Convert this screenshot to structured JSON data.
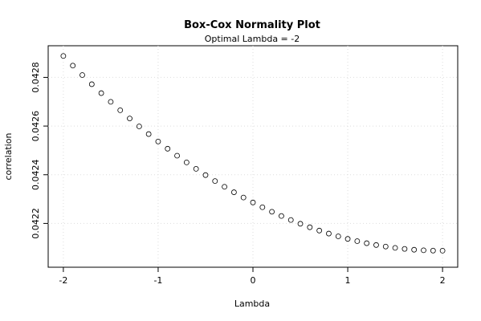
{
  "chart_data": {
    "type": "scatter",
    "title": "Box-Cox Normality Plot",
    "subtitle": "Optimal Lambda = -2",
    "x_label": "Lambda",
    "y_label": "correlation",
    "x": [
      -2,
      -1.9,
      -1.8,
      -1.7,
      -1.6,
      -1.5,
      -1.4,
      -1.3,
      -1.2,
      -1.1,
      -1,
      -0.9,
      -0.8,
      -0.7,
      -0.6,
      -0.5,
      -0.4,
      -0.3,
      -0.2,
      -0.1,
      0,
      0.1,
      0.2,
      0.3,
      0.4,
      0.5,
      0.6,
      0.7,
      0.8,
      0.9,
      1,
      1.1,
      1.2,
      1.3,
      1.4,
      1.5,
      1.6,
      1.7,
      1.8,
      1.9,
      2
    ],
    "values": [
      0.042888,
      0.0428483,
      0.0428096,
      0.0427719,
      0.0427353,
      0.0426996,
      0.042665,
      0.0426313,
      0.0425987,
      0.0425671,
      0.0425365,
      0.0425069,
      0.0424783,
      0.0424507,
      0.0424242,
      0.0423986,
      0.0423741,
      0.0423505,
      0.042328,
      0.0423065,
      0.042286,
      0.0422665,
      0.042248,
      0.0422305,
      0.0422141,
      0.0421986,
      0.0421842,
      0.0421707,
      0.0421583,
      0.0421469,
      0.0421365,
      0.0421271,
      0.0421187,
      0.0421113,
      0.042105,
      0.0420996,
      0.0420953,
      0.0420919,
      0.0420896,
      0.0420883,
      0.042088
    ],
    "color": "#000000",
    "xlim": [
      -2.16,
      2.16
    ],
    "xticks": [
      -2,
      -1,
      0,
      1,
      2
    ],
    "ylim": [
      0.04202,
      0.04293
    ],
    "yticks": [
      0.0422,
      0.0424,
      0.0426,
      0.0428
    ],
    "grid": true
  }
}
